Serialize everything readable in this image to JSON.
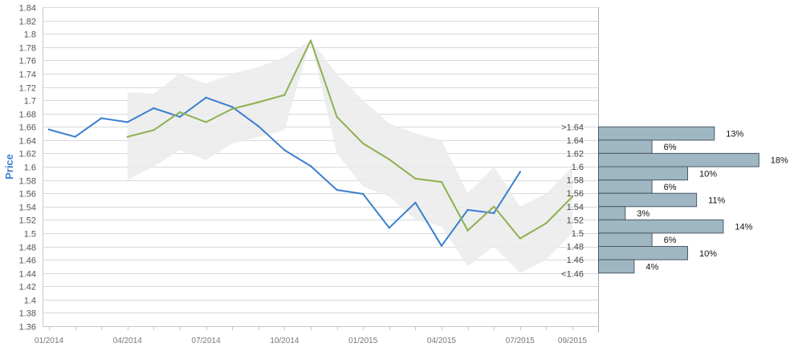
{
  "chart_data": {
    "type": "line",
    "title": "",
    "xlabel": "",
    "ylabel": "Price",
    "ylim": [
      1.36,
      1.84
    ],
    "y_ticks": [
      "1.36",
      "1.38",
      "1.4",
      "1.42",
      "1.44",
      "1.46",
      "1.48",
      "1.5",
      "1.52",
      "1.54",
      "1.56",
      "1.58",
      "1.6",
      "1.62",
      "1.64",
      "1.66",
      "1.68",
      "1.7",
      "1.72",
      "1.74",
      "1.76",
      "1.78",
      "1.8",
      "1.82",
      "1.84"
    ],
    "x_ticks": [
      "01/2014",
      "04/2014",
      "07/2014",
      "10/2014",
      "01/2015",
      "04/2015",
      "07/2015",
      "09/2015"
    ],
    "x_months": [
      "01/2014",
      "02/2014",
      "03/2014",
      "04/2014",
      "05/2014",
      "06/2014",
      "07/2014",
      "08/2014",
      "09/2014",
      "10/2014",
      "11/2014",
      "12/2014",
      "01/2015",
      "02/2015",
      "03/2015",
      "04/2015",
      "05/2015",
      "06/2015",
      "07/2015",
      "08/2015",
      "09/2015"
    ],
    "grid": true,
    "legend": "none",
    "colors": {
      "actual": "#3b7fd0",
      "forecast": "#8db050",
      "band": "#ebebeb",
      "hist_fill": "#9fb6c3",
      "hist_stroke": "#4a5a66"
    },
    "series": [
      {
        "x": [
          "01/2014",
          "02/2014",
          "03/2014",
          "04/2014",
          "05/2014",
          "06/2014",
          "07/2014",
          "08/2014",
          "09/2014",
          "10/2014",
          "11/2014",
          "12/2014",
          "01/2015",
          "02/2015",
          "03/2015",
          "04/2015",
          "05/2015",
          "06/2015",
          "07/2015"
        ],
        "values": [
          1.656,
          1.645,
          1.673,
          1.667,
          1.688,
          1.675,
          1.704,
          1.69,
          1.661,
          1.625,
          1.601,
          1.565,
          1.559,
          1.508,
          1.546,
          1.481,
          1.535,
          1.53,
          1.592
        ]
      },
      {
        "x": [
          "04/2014",
          "05/2014",
          "06/2014",
          "07/2014",
          "08/2014",
          "09/2014",
          "10/2014",
          "11/2014",
          "12/2014",
          "01/2015",
          "02/2015",
          "03/2015",
          "04/2015",
          "05/2015",
          "06/2015",
          "07/2015",
          "08/2015",
          "09/2015"
        ],
        "values": [
          1.645,
          1.655,
          1.682,
          1.667,
          1.687,
          1.697,
          1.708,
          1.79,
          1.675,
          1.635,
          1.611,
          1.582,
          1.577,
          1.504,
          1.54,
          1.492,
          1.515,
          1.555
        ]
      }
    ],
    "band": {
      "x": [
        "04/2014",
        "05/2014",
        "06/2014",
        "07/2014",
        "08/2014",
        "09/2014",
        "10/2014",
        "11/2014",
        "12/2014",
        "01/2015",
        "02/2015",
        "03/2015",
        "04/2015",
        "05/2015",
        "06/2015",
        "07/2015",
        "08/2015",
        "09/2015"
      ],
      "upper": [
        1.712,
        1.71,
        1.74,
        1.725,
        1.74,
        1.75,
        1.765,
        1.79,
        1.74,
        1.7,
        1.665,
        1.65,
        1.64,
        1.56,
        1.6,
        1.54,
        1.56,
        1.6
      ],
      "lower": [
        1.58,
        1.6,
        1.625,
        1.61,
        1.635,
        1.645,
        1.655,
        1.79,
        1.62,
        1.57,
        1.555,
        1.52,
        1.51,
        1.45,
        1.48,
        1.44,
        1.46,
        1.5
      ]
    },
    "histogram": [
      {
        "label": ">1.64",
        "value": 1.64,
        "pct": 13,
        "pct_label": "13%"
      },
      {
        "label": "1.64",
        "value": 1.62,
        "pct": 6,
        "pct_label": "6%"
      },
      {
        "label": "1.62",
        "value": 1.6,
        "pct": 18,
        "pct_label": "18%"
      },
      {
        "label": "1.6",
        "value": 1.58,
        "pct": 10,
        "pct_label": "10%"
      },
      {
        "label": "1.58",
        "value": 1.56,
        "pct": 6,
        "pct_label": "6%"
      },
      {
        "label": "1.56",
        "value": 1.54,
        "pct": 11,
        "pct_label": "11%"
      },
      {
        "label": "1.54",
        "value": 1.52,
        "pct": 3,
        "pct_label": "3%"
      },
      {
        "label": "1.52",
        "value": 1.5,
        "pct": 14,
        "pct_label": "14%"
      },
      {
        "label": "1.5",
        "value": 1.48,
        "pct": 6,
        "pct_label": "6%"
      },
      {
        "label": "1.48",
        "value": 1.46,
        "pct": 10,
        "pct_label": "10%"
      },
      {
        "label": "1.46",
        "value": 1.44,
        "pct": 4,
        "pct_label": "4%"
      },
      {
        "label": "<1.46",
        "value": 1.44,
        "pct": 0,
        "pct_label": ""
      }
    ]
  }
}
